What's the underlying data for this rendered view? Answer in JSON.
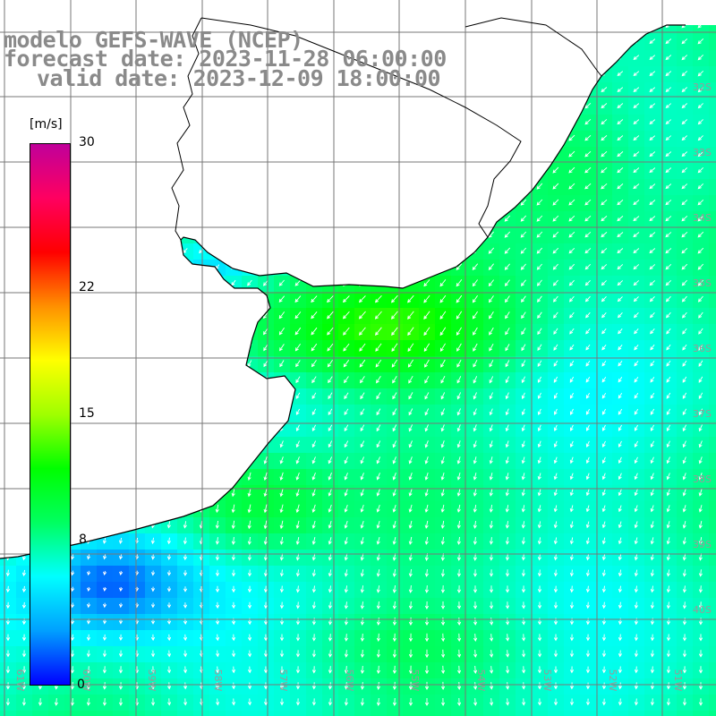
{
  "title": {
    "model_line": "modelo GEFS-WAVE (NCEP)",
    "forecast_line": "forecast date: 2023-11-28 06:00:00",
    "valid_line": "valid date: 2023-12-09 18:00:00"
  },
  "colorbar": {
    "unit": "[m/s]",
    "min": 0,
    "max": 30,
    "ticks": [
      "30",
      "22",
      "15",
      "8",
      "0"
    ],
    "tick_values": [
      30,
      22,
      15,
      8,
      0
    ],
    "colors": [
      "#0000ff",
      "#00a0ff",
      "#00ffff",
      "#00ff60",
      "#00ff00",
      "#a0ff00",
      "#ffff00",
      "#ff9000",
      "#ff0000",
      "#ff0060",
      "#c0009a"
    ]
  },
  "grid": {
    "lat_labels": [
      "32S",
      "33S",
      "34S",
      "35S",
      "36S",
      "37S",
      "38S",
      "39S",
      "40S"
    ],
    "lon_labels": [
      "61W",
      "60W",
      "59W",
      "58W",
      "57W",
      "56W",
      "55W",
      "54W",
      "53W",
      "52W",
      "51W"
    ]
  },
  "colors": {
    "land": "#ffffff",
    "coastline": "#000000",
    "gridline": "#777777",
    "arrow": "#ffffff",
    "label": "#999999"
  }
}
